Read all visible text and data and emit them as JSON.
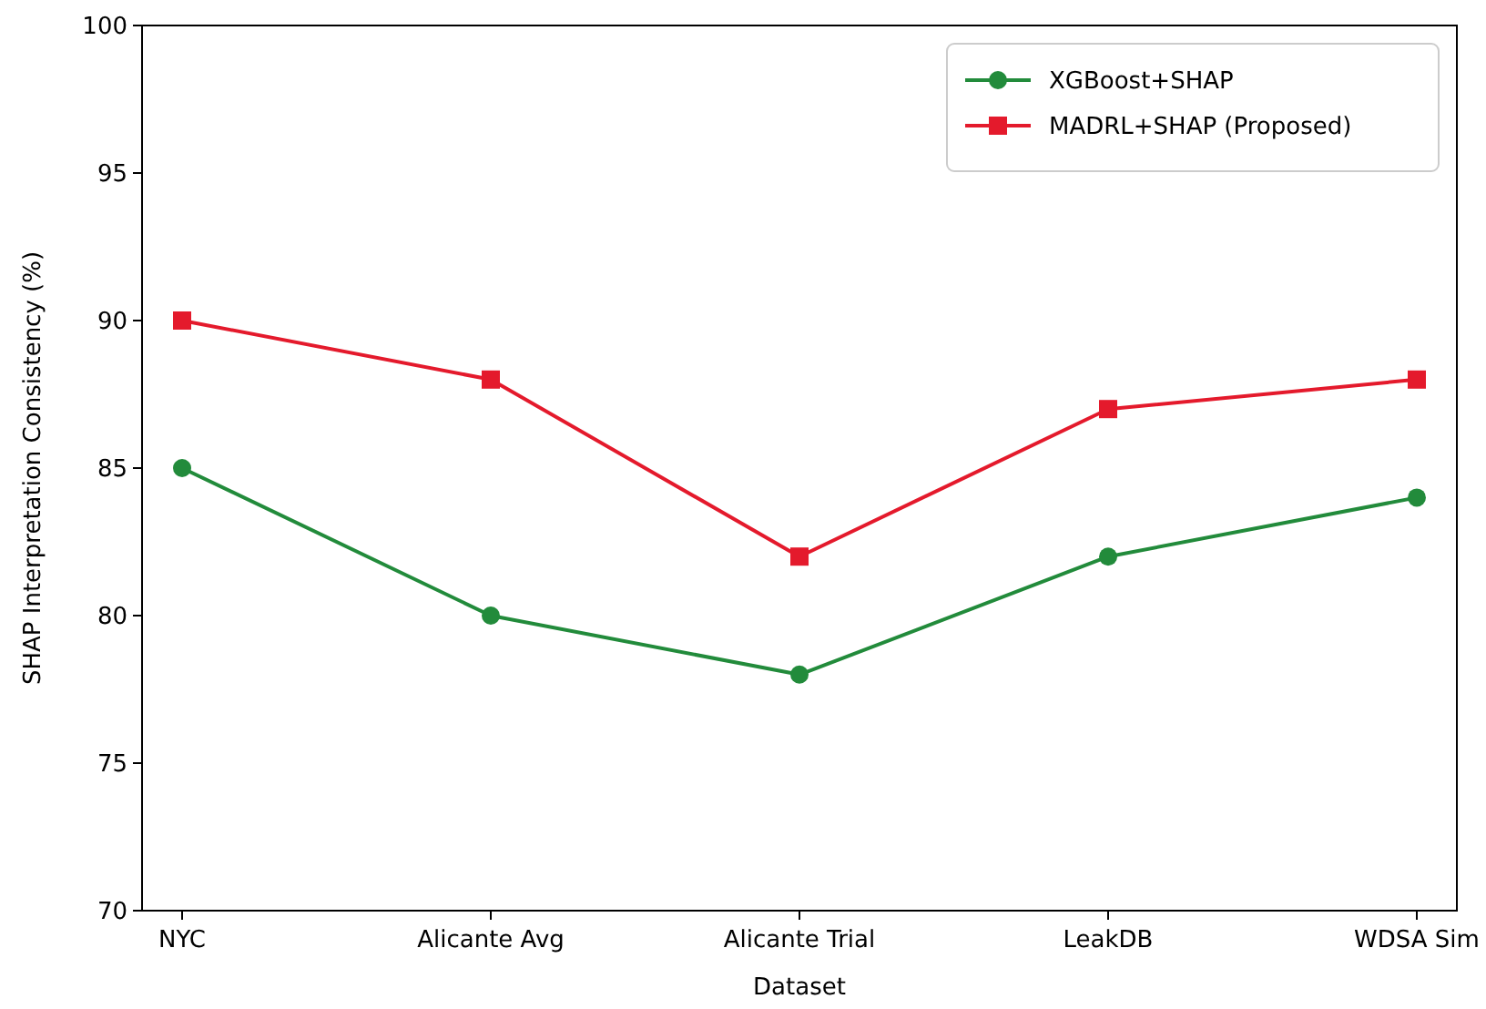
{
  "chart_data": {
    "type": "line",
    "xlabel": "Dataset",
    "ylabel": "SHAP Interpretation Consistency (%)",
    "categories": [
      "NYC",
      "Alicante Avg",
      "Alicante Trial",
      "LeakDB",
      "WDSA Sim"
    ],
    "series": [
      {
        "name": "XGBoost+SHAP",
        "color": "#228b3b",
        "marker": "circle",
        "values": [
          85,
          80,
          78,
          82,
          84
        ]
      },
      {
        "name": "MADRL+SHAP (Proposed)",
        "color": "#e41a2c",
        "marker": "square",
        "values": [
          90,
          88,
          82,
          87,
          88
        ]
      }
    ],
    "ylim": [
      70,
      100
    ],
    "yticks": [
      70,
      75,
      80,
      85,
      90,
      95,
      100
    ],
    "grid": false,
    "legend": "top right",
    "line_style": "solid"
  }
}
